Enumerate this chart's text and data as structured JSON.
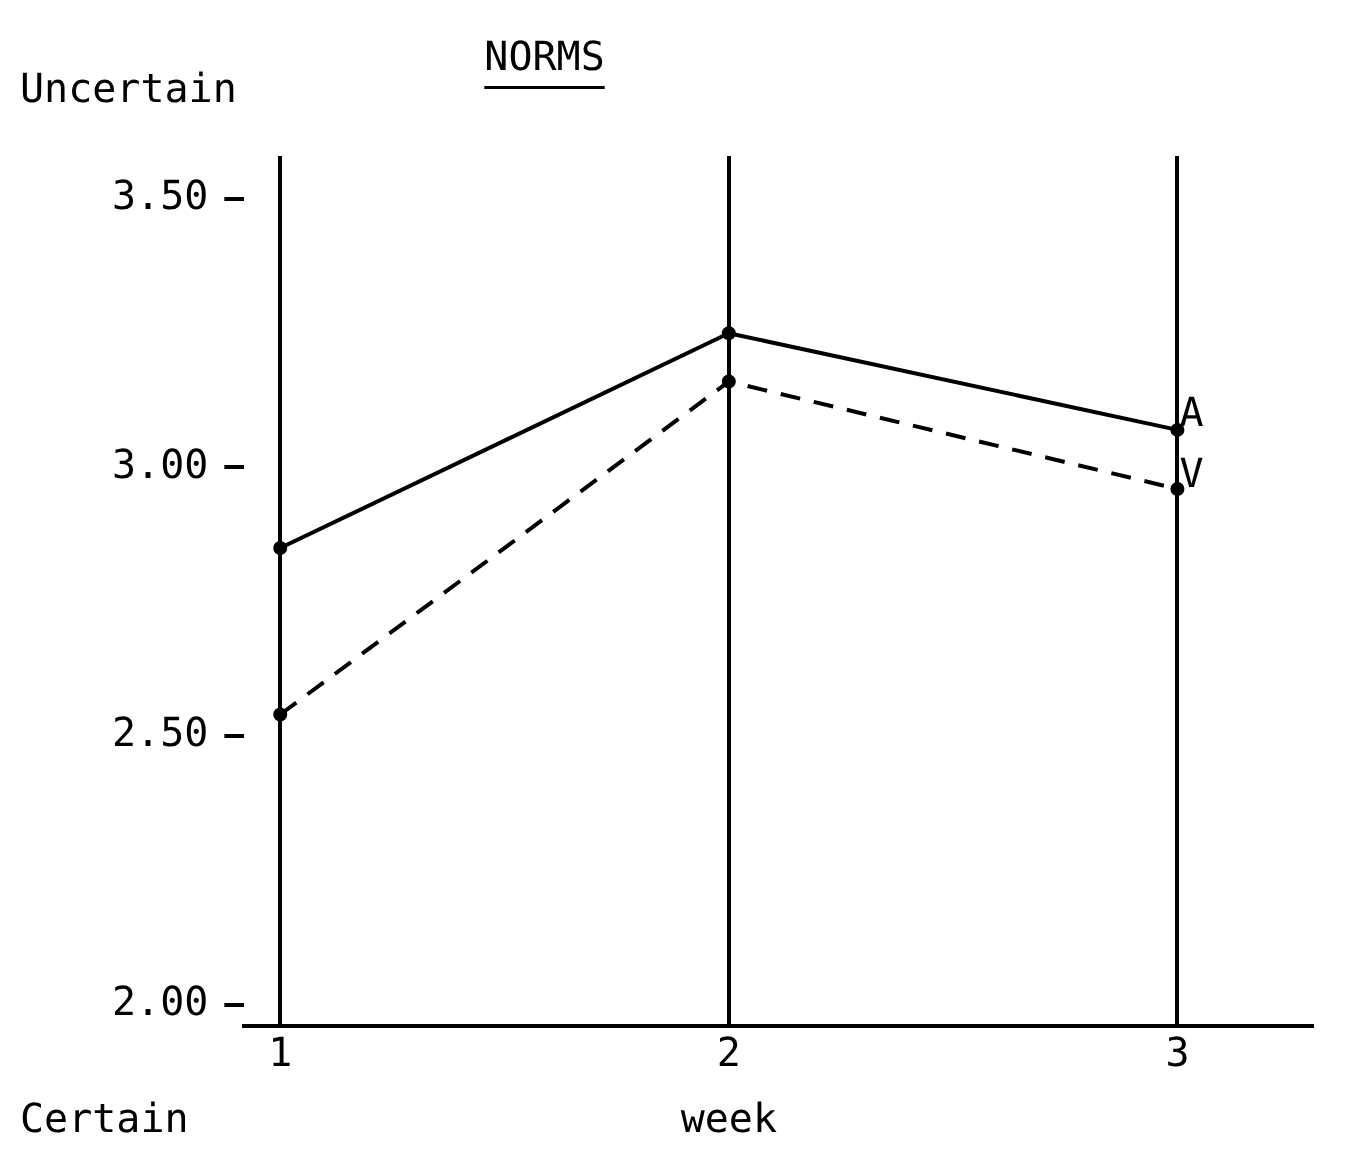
{
  "chart_data": {
    "type": "line",
    "title": "NORMS",
    "xlabel": "week",
    "annotations": [
      "Uncertain",
      "Certain"
    ],
    "x": [
      1,
      2,
      3
    ],
    "series": [
      {
        "name": "A",
        "color": "#000000",
        "values": [
          2.85,
          3.25,
          3.07
        ],
        "line_style": "solid"
      },
      {
        "name": "V",
        "color": "#000000",
        "values": [
          2.54,
          3.16,
          2.96
        ],
        "line_style": "dashed"
      }
    ],
    "xlim": [
      0.92,
      3.3
    ],
    "xticks": [
      1,
      2,
      3
    ],
    "ylim": [
      1.96,
      3.58
    ],
    "yticks": [
      {
        "value": 2,
        "label": "2.00"
      },
      {
        "value": 2.5,
        "label": "2.50"
      },
      {
        "value": 3,
        "label": "3.00"
      },
      {
        "value": 3.5,
        "label": "3.50"
      }
    ],
    "grid": "x",
    "marker": "circle",
    "legend": false
  }
}
